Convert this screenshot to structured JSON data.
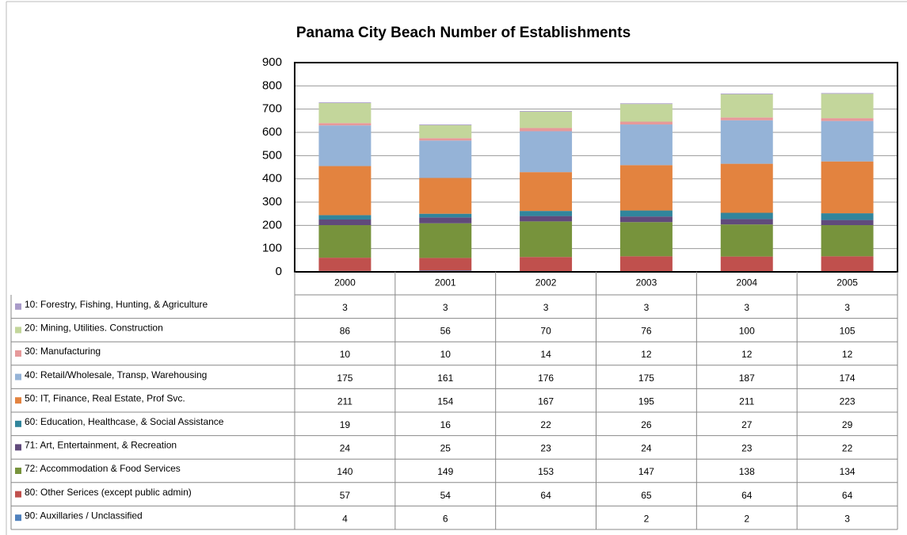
{
  "chart_data": {
    "type": "bar",
    "stacked": true,
    "title": "Panama City Beach Number of Establishments",
    "categories": [
      "2000",
      "2001",
      "2002",
      "2003",
      "2004",
      "2005"
    ],
    "ylim": [
      0,
      900
    ],
    "yticks": [
      0,
      100,
      200,
      300,
      400,
      500,
      600,
      700,
      800,
      900
    ],
    "grid": true,
    "series": [
      {
        "name": "10: Forestry, Fishing, Hunting, & Agriculture",
        "color": "#a99bc9",
        "values": [
          3,
          3,
          3,
          3,
          3,
          3
        ]
      },
      {
        "name": "20: Mining, Utilities. Construction",
        "color": "#c3d69b",
        "values": [
          86,
          56,
          70,
          76,
          100,
          105
        ]
      },
      {
        "name": "30: Manufacturing",
        "color": "#e6999a",
        "values": [
          10,
          10,
          14,
          12,
          12,
          12
        ]
      },
      {
        "name": "40: Retail/Wholesale, Transp, Warehousing",
        "color": "#95b3d7",
        "values": [
          175,
          161,
          176,
          175,
          187,
          174
        ]
      },
      {
        "name": "50: IT, Finance, Real Estate, Prof Svc.",
        "color": "#e3833f",
        "values": [
          211,
          154,
          167,
          195,
          211,
          223
        ]
      },
      {
        "name": "60: Education, Healthcase, & Social Assistance",
        "color": "#31859c",
        "values": [
          19,
          16,
          22,
          26,
          27,
          29
        ]
      },
      {
        "name": "71: Art, Entertainment, & Recreation",
        "color": "#604a7b",
        "values": [
          24,
          25,
          23,
          24,
          23,
          22
        ]
      },
      {
        "name": "72: Accommodation & Food Services",
        "color": "#77933c",
        "values": [
          140,
          149,
          153,
          147,
          138,
          134
        ]
      },
      {
        "name": "80: Other Serices (except public admin)",
        "color": "#c0504d",
        "values": [
          57,
          54,
          64,
          65,
          64,
          64
        ]
      },
      {
        "name": "90: Auxillaries / Unclassified",
        "color": "#4f81bd",
        "values": [
          4,
          6,
          null,
          2,
          2,
          3
        ]
      }
    ]
  }
}
